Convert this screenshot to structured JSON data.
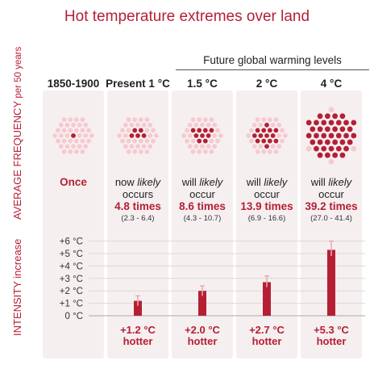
{
  "title": "Hot temperature extremes over land",
  "future_label": "Future global warming levels",
  "side_labels": {
    "frequency_main": "AVERAGE FREQUENCY",
    "frequency_suffix": " per 50 years",
    "intensity_main": "INTENSITY increase"
  },
  "columns": [
    {
      "header": "1850-1900",
      "once_label": "Once"
    },
    {
      "header": "Present 1 °C",
      "line1_pre": "now ",
      "line1_em": "likely",
      "line2": "occurs",
      "times": "4.8 times",
      "range": "(2.3 - 6.4)",
      "hotter_value": "+1.2 °C",
      "hotter_word": "hotter"
    },
    {
      "header": "1.5 °C",
      "line1_pre": "will ",
      "line1_em": "likely",
      "line2": "occur",
      "times": "8.6 times",
      "range": "(4.3 - 10.7)",
      "hotter_value": "+2.0 °C",
      "hotter_word": "hotter"
    },
    {
      "header": "2 °C",
      "line1_pre": "will ",
      "line1_em": "likely",
      "line2": "occur",
      "times": "13.9 times",
      "range": "(6.9 - 16.6)",
      "hotter_value": "+2.7 °C",
      "hotter_word": "hotter"
    },
    {
      "header": "4 °C",
      "line1_pre": "will ",
      "line1_em": "likely",
      "line2": "occur",
      "times": "39.2 times",
      "range": "(27.0 - 41.4)",
      "hotter_value": "+5.3 °C",
      "hotter_word": "hotter"
    }
  ],
  "colors": {
    "accent": "#b51f35",
    "dot_light": "#f6c9d0",
    "column_bg": "#f6efef",
    "grid": "#d9d9d9",
    "errorbar": "#e9a9b3"
  },
  "chart_data": [
    {
      "type": "scatter",
      "title": "AVERAGE FREQUENCY per 50 years",
      "categories": [
        "1850-1900",
        "Present 1 °C",
        "1.5 °C",
        "2 °C",
        "4 °C"
      ],
      "values": [
        1,
        4.8,
        8.6,
        13.9,
        39.2
      ],
      "range_low": [
        null,
        2.3,
        4.3,
        6.9,
        27.0
      ],
      "range_high": [
        null,
        6.4,
        10.7,
        16.6,
        41.4
      ],
      "unit": "events per 50 years"
    },
    {
      "type": "bar",
      "title": "INTENSITY increase",
      "categories": [
        "Present 1 °C",
        "1.5 °C",
        "2 °C",
        "4 °C"
      ],
      "values": [
        1.2,
        2.0,
        2.7,
        5.3
      ],
      "error_low": [
        0.8,
        1.6,
        2.3,
        4.8
      ],
      "error_high": [
        1.6,
        2.4,
        3.2,
        6.0
      ],
      "ylim": [
        0,
        6
      ],
      "yticks": [
        "+6 °C",
        "+5 °C",
        "+4 °C",
        "+3 °C",
        "+2 °C",
        "+1 °C",
        "0 °C"
      ],
      "grid": true
    }
  ]
}
